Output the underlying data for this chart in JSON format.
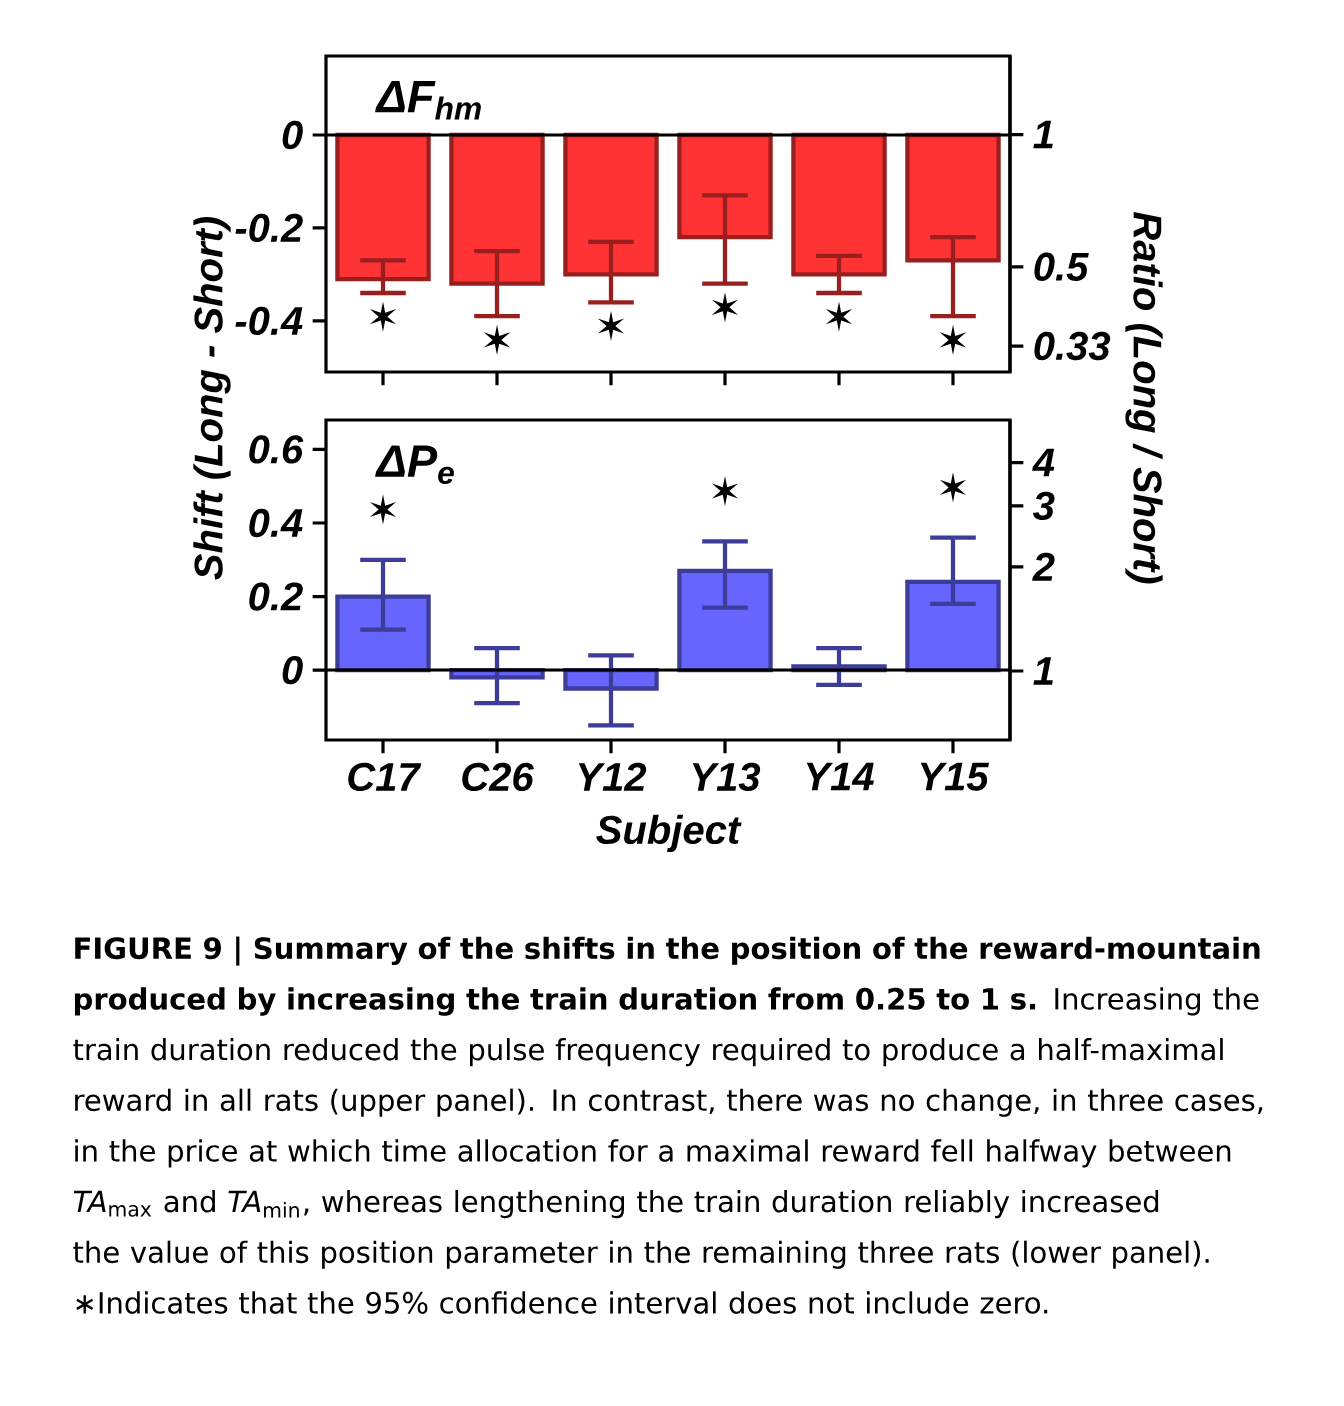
{
  "chart_data": [
    {
      "type": "bar",
      "title": "ΔF$_{hm}$",
      "ylabel": "Shift (Long - Short)",
      "y2label": "Ratio (Long / Short)",
      "categories": [
        null,
        null,
        null,
        null,
        null,
        null
      ],
      "series": [
        {
          "color": "#ff3333",
          "values": [
            -0.31,
            -0.32,
            -0.3,
            -0.22,
            -0.3,
            -0.27
          ],
          "errors": [
            [
              -0.34,
              -0.27
            ],
            [
              -0.39,
              -0.25
            ],
            [
              -0.36,
              -0.23
            ],
            [
              -0.32,
              -0.13
            ],
            [
              -0.34,
              -0.26
            ],
            [
              -0.39,
              -0.22
            ]
          ]
        }
      ],
      "ylim": [
        -0.51,
        0.17
      ],
      "yticks": [
        -0.4,
        -0.2,
        0
      ],
      "y2lim": [
        0.288,
        1.51
      ],
      "y2ticks": [
        0.33,
        0.5,
        1
      ],
      "log": "y2",
      "ref_lines": [
        {
          "axis": "y",
          "value": 0
        }
      ],
      "annotations": [
        "✶",
        "✶",
        "✶",
        "✶",
        "✶",
        "✶"
      ],
      "tick_labels": "y"
    },
    {
      "type": "bar",
      "title": "ΔP$_{e}$",
      "xlabel": "Subject",
      "categories": [
        "C17",
        "C26",
        "Y12",
        "Y13",
        "Y14",
        "Y15"
      ],
      "series": [
        {
          "color": "#6666ff",
          "values": [
            0.2,
            -0.02,
            -0.05,
            0.27,
            0.01,
            0.24
          ],
          "errors": [
            [
              0.11,
              0.3
            ],
            [
              -0.09,
              0.06
            ],
            [
              -0.15,
              0.04
            ],
            [
              0.17,
              0.35
            ],
            [
              -0.04,
              0.06
            ],
            [
              0.18,
              0.36
            ]
          ]
        }
      ],
      "ylim": [
        -0.19,
        0.68
      ],
      "yticks": [
        0,
        0.2,
        0.4,
        0.6
      ],
      "y2lim": [
        0.632,
        5.31
      ],
      "y2ticks": [
        1,
        2,
        3,
        4
      ],
      "log": "y2",
      "ref_lines": [
        {
          "axis": "y",
          "value": 0
        }
      ],
      "annotations": [
        "✶",
        "✶",
        "✶",
        "**FIGURE 9 | Summary of the shifts in the position of the reward-mountain produced by increasing the train duration from 0.25 to 1 s.** Increasing the train duration reduced the pulse frequency required to produce a half-maximal reward in all rats (upper panel). In contrast, there was no change, in three cases, in the price at which time allocation for a maximal reward fell halfway between *TA*$_{max}$ and *TA*$_{min}$, whereas lengthening the train duration reliably increased the value of this position parameter in the remaining three rats (lower panel). ∗Indicates that the 95% confidence interval does not include zero."
      ]
    }
  ]
}
